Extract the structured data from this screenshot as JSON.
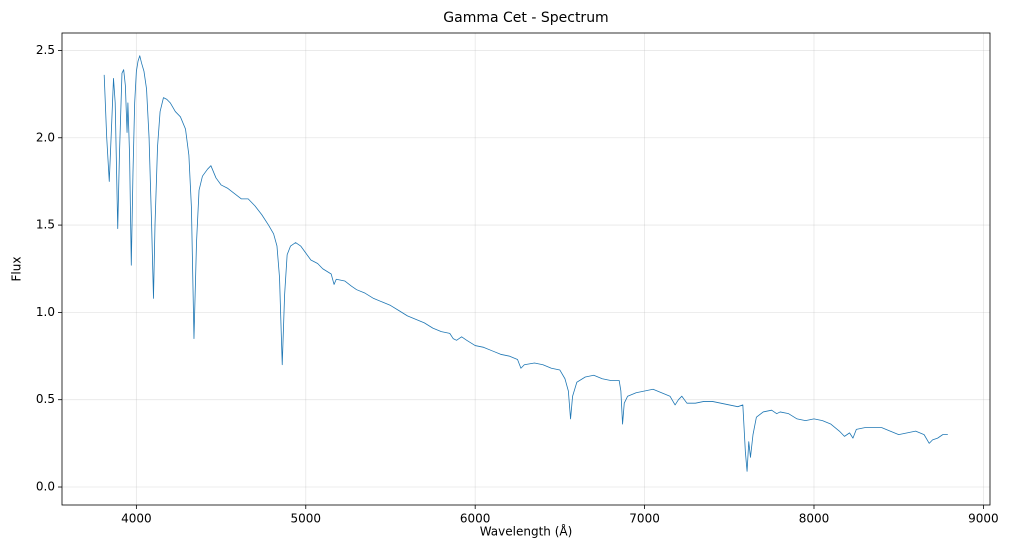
{
  "chart_data": {
    "type": "line",
    "title": "Gamma Cet - Spectrum",
    "x_label": "Wavelength (Å)",
    "y_label": "Flux",
    "xlim": [
      3561,
      9039
    ],
    "ylim": [
      -0.103,
      2.6
    ],
    "xticks": [
      4000,
      5000,
      6000,
      7000,
      8000,
      9000
    ],
    "yticks": [
      {
        "value": 0,
        "label": "0.0"
      },
      {
        "value": 0.5,
        "label": "0.5"
      },
      {
        "value": 1,
        "label": "1.0"
      },
      {
        "value": 1.5,
        "label": "1.5"
      },
      {
        "value": 2,
        "label": "2.0"
      },
      {
        "value": 2.5,
        "label": "2.5"
      }
    ],
    "grid": true,
    "color": "#1f77b4",
    "x": [
      3810,
      3825,
      3840,
      3855,
      3865,
      3875,
      3890,
      3900,
      3915,
      3925,
      3935,
      3945,
      3950,
      3960,
      3970,
      3980,
      3990,
      4000,
      4010,
      4020,
      4030,
      4045,
      4060,
      4075,
      4090,
      4101,
      4110,
      4125,
      4140,
      4160,
      4180,
      4200,
      4230,
      4260,
      4290,
      4310,
      4325,
      4340,
      4355,
      4370,
      4390,
      4420,
      4440,
      4470,
      4500,
      4540,
      4580,
      4620,
      4660,
      4700,
      4740,
      4780,
      4810,
      4830,
      4845,
      4861,
      4875,
      4890,
      4910,
      4940,
      4970,
      5000,
      5030,
      5070,
      5100,
      5150,
      5167,
      5180,
      5230,
      5270,
      5300,
      5350,
      5400,
      5450,
      5500,
      5550,
      5600,
      5650,
      5700,
      5750,
      5800,
      5850,
      5870,
      5890,
      5920,
      5950,
      6000,
      6050,
      6100,
      6150,
      6200,
      6250,
      6270,
      6290,
      6350,
      6400,
      6450,
      6500,
      6530,
      6550,
      6563,
      6575,
      6600,
      6650,
      6700,
      6750,
      6800,
      6850,
      6860,
      6870,
      6880,
      6900,
      6950,
      7000,
      7050,
      7100,
      7150,
      7180,
      7200,
      7220,
      7250,
      7300,
      7350,
      7400,
      7450,
      7500,
      7550,
      7580,
      7595,
      7605,
      7615,
      7625,
      7640,
      7660,
      7700,
      7750,
      7780,
      7800,
      7850,
      7900,
      7950,
      8000,
      8050,
      8100,
      8150,
      8180,
      8210,
      8230,
      8250,
      8300,
      8350,
      8400,
      8450,
      8500,
      8550,
      8600,
      8650,
      8680,
      8700,
      8730,
      8760,
      8790
    ],
    "values": [
      2.36,
      2.0,
      1.75,
      2.1,
      2.34,
      2.2,
      1.48,
      1.9,
      2.37,
      2.39,
      2.3,
      2.03,
      2.2,
      1.9,
      1.27,
      1.8,
      2.2,
      2.38,
      2.44,
      2.47,
      2.43,
      2.38,
      2.28,
      2.0,
      1.5,
      1.08,
      1.5,
      1.95,
      2.15,
      2.23,
      2.22,
      2.2,
      2.15,
      2.12,
      2.05,
      1.9,
      1.6,
      0.85,
      1.4,
      1.7,
      1.78,
      1.82,
      1.84,
      1.77,
      1.73,
      1.71,
      1.68,
      1.65,
      1.65,
      1.61,
      1.56,
      1.5,
      1.45,
      1.38,
      1.2,
      0.7,
      1.1,
      1.33,
      1.38,
      1.4,
      1.38,
      1.34,
      1.3,
      1.28,
      1.25,
      1.22,
      1.16,
      1.19,
      1.18,
      1.15,
      1.13,
      1.11,
      1.08,
      1.06,
      1.04,
      1.01,
      0.98,
      0.96,
      0.94,
      0.91,
      0.89,
      0.88,
      0.85,
      0.84,
      0.86,
      0.84,
      0.81,
      0.8,
      0.78,
      0.76,
      0.75,
      0.73,
      0.68,
      0.7,
      0.71,
      0.7,
      0.68,
      0.67,
      0.62,
      0.55,
      0.39,
      0.52,
      0.6,
      0.63,
      0.64,
      0.62,
      0.61,
      0.61,
      0.55,
      0.36,
      0.48,
      0.52,
      0.54,
      0.55,
      0.56,
      0.54,
      0.52,
      0.47,
      0.5,
      0.52,
      0.48,
      0.48,
      0.49,
      0.49,
      0.48,
      0.47,
      0.46,
      0.47,
      0.2,
      0.09,
      0.26,
      0.17,
      0.3,
      0.4,
      0.43,
      0.44,
      0.42,
      0.43,
      0.42,
      0.39,
      0.38,
      0.39,
      0.38,
      0.36,
      0.32,
      0.29,
      0.31,
      0.28,
      0.33,
      0.34,
      0.34,
      0.34,
      0.32,
      0.3,
      0.31,
      0.32,
      0.3,
      0.25,
      0.27,
      0.28,
      0.3,
      0.3
    ]
  }
}
